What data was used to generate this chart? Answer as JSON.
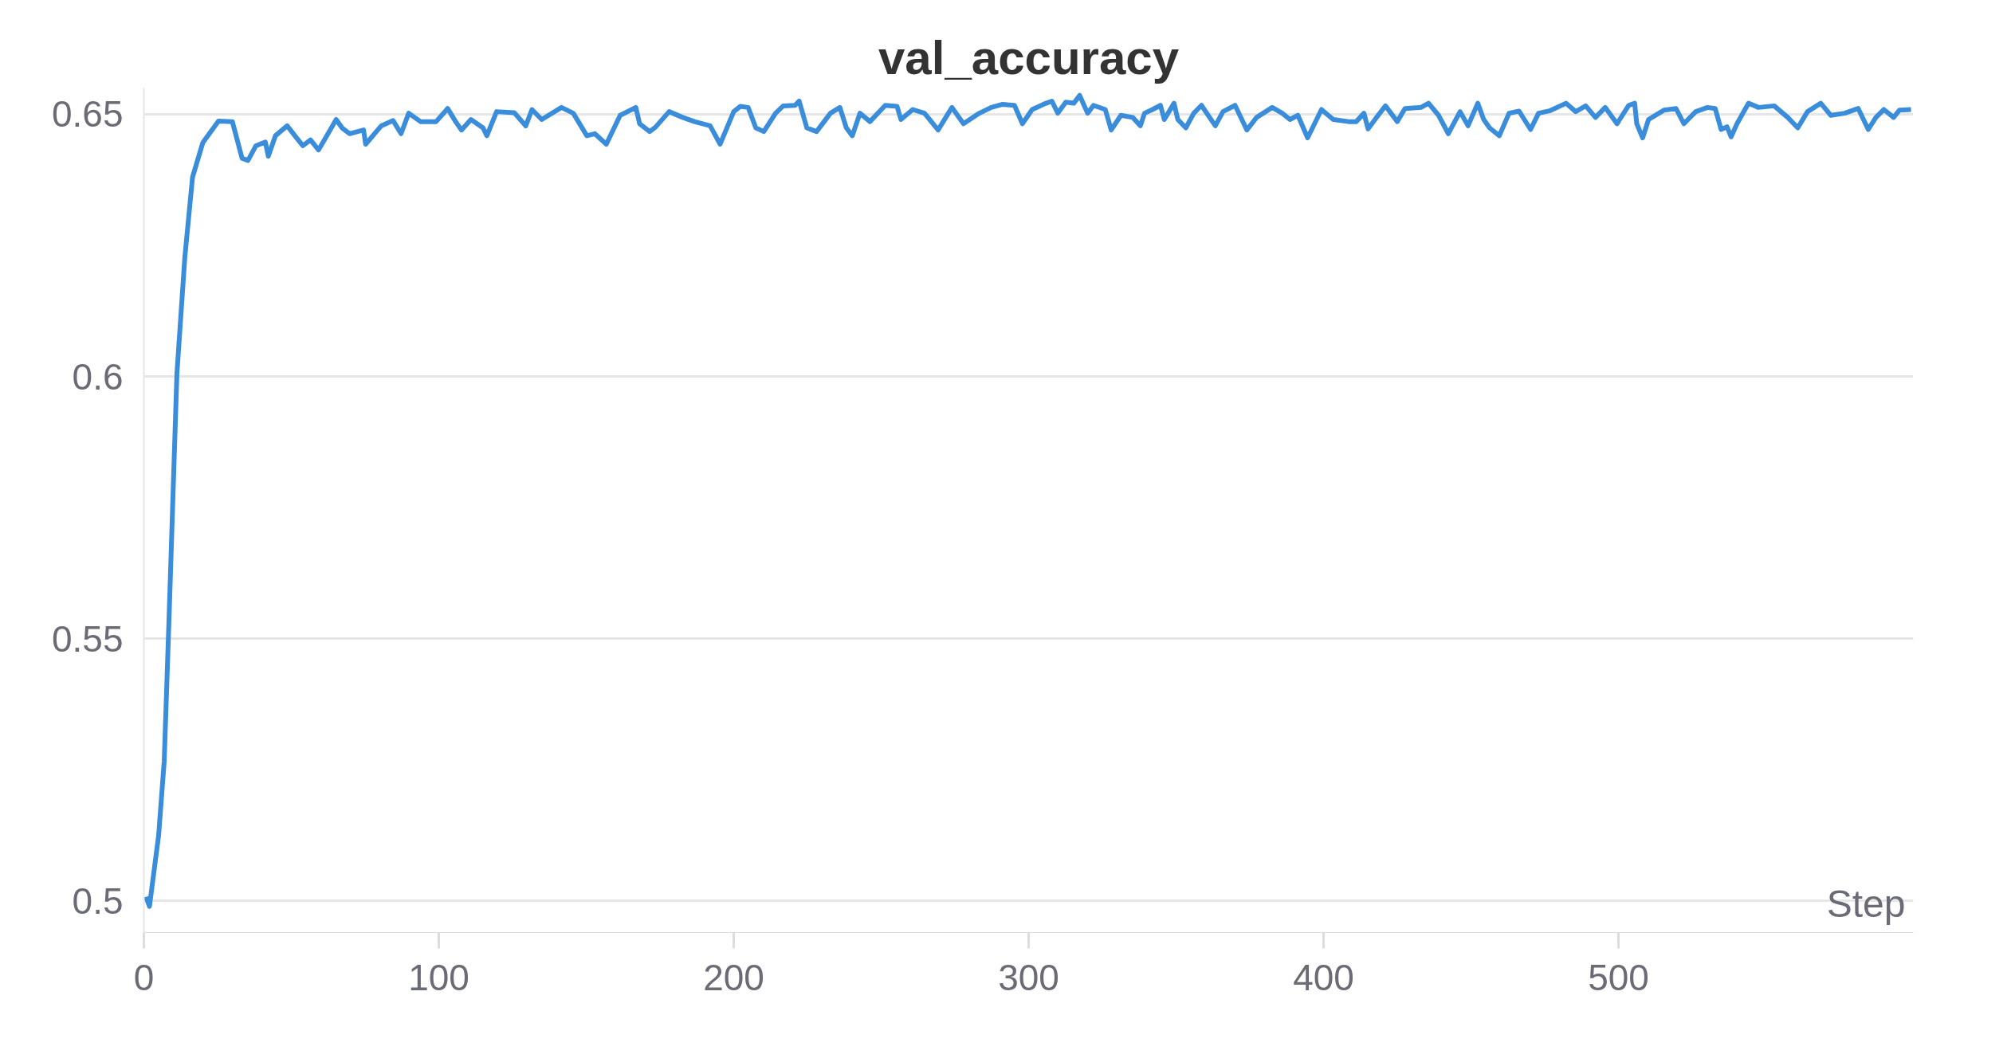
{
  "chart_data": {
    "type": "line",
    "title": "val_accuracy",
    "xlabel": "Step",
    "x": [
      0.7,
      1.9,
      5,
      6.9,
      8.6,
      11.2,
      13.9,
      16.5,
      20,
      25.3,
      30,
      33.3,
      35.3,
      38,
      41.2,
      42.2,
      44.6,
      48.6,
      51.2,
      53.9,
      56.5,
      59.2,
      61.2,
      65.2,
      67.2,
      69.8,
      74.5,
      75.2,
      80.5,
      84.5,
      87.2,
      89.8,
      93.8,
      99.1,
      103,
      105.7,
      107.7,
      110.9,
      115,
      116.3,
      119.6,
      125.6,
      129.5,
      131.6,
      134.9,
      141.6,
      145.6,
      150.2,
      152.9,
      156.8,
      161.5,
      166.8,
      168.1,
      171.5,
      173.4,
      178.1,
      182.7,
      186.7,
      192,
      195.4,
      200,
      202.2,
      204.9,
      207.5,
      210.2,
      214.2,
      216.8,
      220.8,
      222.2,
      224.8,
      228.1,
      232.8,
      236,
      238.2,
      240.2,
      242.8,
      246.2,
      251.4,
      255.4,
      256.7,
      260.7,
      264.7,
      269.3,
      274,
      277.9,
      283.3,
      287.3,
      291.2,
      295.2,
      297.9,
      301.2,
      305.9,
      307.9,
      309.9,
      312.6,
      315.3,
      317.3,
      320,
      322,
      326,
      328,
      331.3,
      335.3,
      337.9,
      339.3,
      342,
      344.7,
      346,
      349.3,
      350.6,
      353.3,
      356,
      358.6,
      363.3,
      365.9,
      370,
      374,
      377.3,
      382.6,
      386,
      388.6,
      391.3,
      394.6,
      399.3,
      403.3,
      408.5,
      411.1,
      413.7,
      415.1,
      417.7,
      421,
      425,
      427.6,
      433,
      435.6,
      439,
      442.3,
      446.3,
      449,
      452.3,
      454.3,
      456.3,
      459.6,
      462.9,
      466.3,
      470.2,
      472.9,
      476.9,
      482.2,
      485.5,
      488.9,
      492.2,
      495.5,
      499.5,
      503.5,
      505.5,
      506.2,
      508.2,
      510.2,
      515.5,
      519.5,
      522.2,
      526.2,
      530.2,
      532.8,
      534.8,
      536.8,
      538.2,
      540.2,
      544.1,
      547.5,
      552.8,
      557.4,
      560.8,
      564.1,
      568.6,
      572,
      576.7,
      581.3,
      584.7,
      587.3,
      590,
      593.3,
      595.3,
      599.2
    ],
    "series": [
      {
        "color": "#3a8ddb",
        "values": [
          0.5008,
          0.499,
          0.5125,
          0.5267,
          0.555,
          0.6005,
          0.6228,
          0.638,
          0.6446,
          0.6487,
          0.6486,
          0.6416,
          0.6412,
          0.644,
          0.6447,
          0.642,
          0.6459,
          0.6478,
          0.6459,
          0.644,
          0.6451,
          0.6432,
          0.6451,
          0.649,
          0.6474,
          0.6463,
          0.647,
          0.6443,
          0.6478,
          0.6488,
          0.6463,
          0.6502,
          0.6486,
          0.6486,
          0.6511,
          0.6486,
          0.647,
          0.649,
          0.6474,
          0.6459,
          0.6505,
          0.6503,
          0.6478,
          0.6509,
          0.649,
          0.6513,
          0.6502,
          0.6459,
          0.6463,
          0.6443,
          0.6498,
          0.6513,
          0.6482,
          0.6467,
          0.6475,
          0.6505,
          0.6494,
          0.6486,
          0.6478,
          0.6443,
          0.6505,
          0.6515,
          0.6513,
          0.6474,
          0.6467,
          0.6502,
          0.6516,
          0.6517,
          0.6525,
          0.6474,
          0.6467,
          0.6502,
          0.6513,
          0.6474,
          0.6459,
          0.6502,
          0.6486,
          0.6517,
          0.6515,
          0.649,
          0.6509,
          0.6502,
          0.647,
          0.6513,
          0.6482,
          0.6502,
          0.6513,
          0.6519,
          0.6517,
          0.6482,
          0.6509,
          0.6521,
          0.6525,
          0.6502,
          0.6523,
          0.6521,
          0.6536,
          0.6502,
          0.6517,
          0.6509,
          0.647,
          0.6498,
          0.6494,
          0.6478,
          0.6502,
          0.6509,
          0.6517,
          0.649,
          0.6521,
          0.649,
          0.6474,
          0.6502,
          0.6517,
          0.6478,
          0.6505,
          0.6517,
          0.647,
          0.6494,
          0.6513,
          0.6502,
          0.649,
          0.6498,
          0.6455,
          0.6509,
          0.649,
          0.6486,
          0.6486,
          0.6502,
          0.6472,
          0.6492,
          0.6516,
          0.6486,
          0.6511,
          0.6513,
          0.6521,
          0.6498,
          0.6463,
          0.6505,
          0.6478,
          0.6521,
          0.649,
          0.6474,
          0.6459,
          0.6502,
          0.6506,
          0.6471,
          0.6502,
          0.6507,
          0.6521,
          0.6505,
          0.6516,
          0.6494,
          0.6513,
          0.6482,
          0.6517,
          0.6521,
          0.6482,
          0.6455,
          0.649,
          0.6508,
          0.6511,
          0.6482,
          0.6505,
          0.6513,
          0.6511,
          0.6471,
          0.6476,
          0.6457,
          0.6482,
          0.6521,
          0.6513,
          0.6516,
          0.6494,
          0.6474,
          0.6505,
          0.6521,
          0.6498,
          0.6502,
          0.6511,
          0.6471,
          0.6494,
          0.6509,
          0.6494,
          0.6508,
          0.6509
        ]
      }
    ],
    "xlim": [
      0,
      600
    ],
    "ylim": [
      0.494,
      0.655
    ],
    "xticks": [
      0,
      100,
      200,
      300,
      400,
      500
    ],
    "yticks": [
      {
        "value": 0.5,
        "label": "0.5"
      },
      {
        "value": 0.55,
        "label": "0.55"
      },
      {
        "value": 0.6,
        "label": "0.6"
      },
      {
        "value": 0.65,
        "label": "0.65"
      }
    ],
    "grid": "y",
    "marker": "none",
    "line_style": "solid"
  }
}
